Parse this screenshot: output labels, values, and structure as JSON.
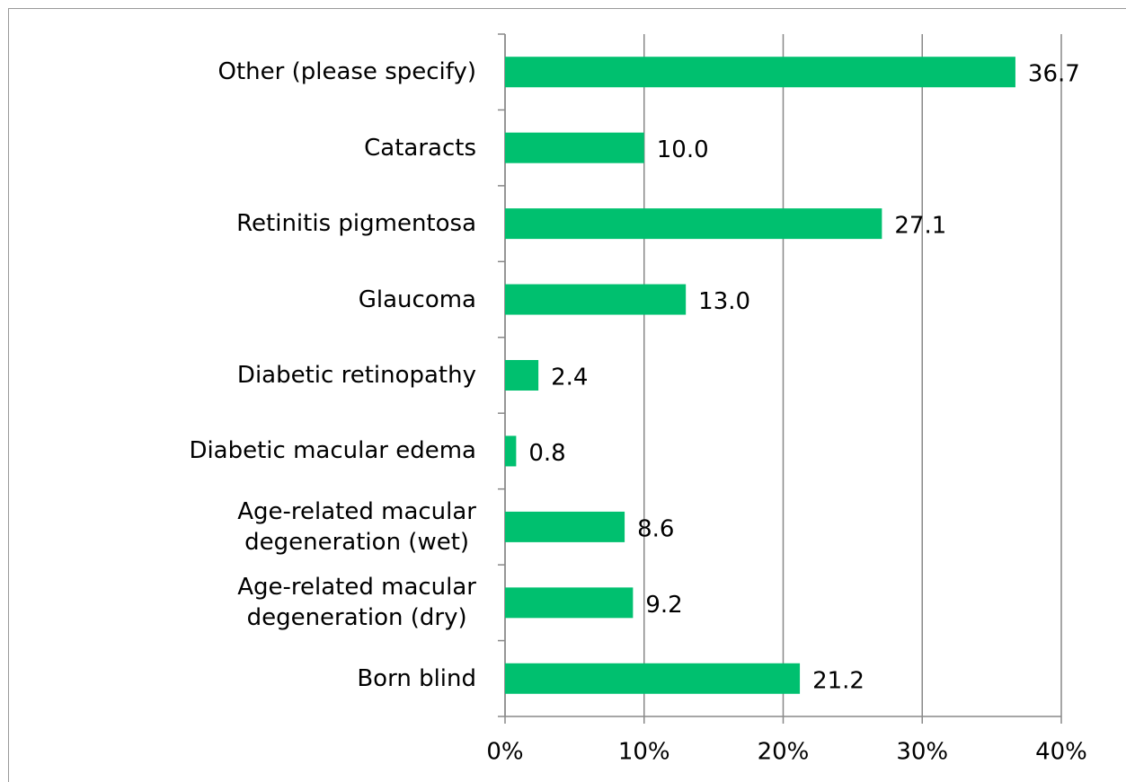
{
  "chart_data": {
    "type": "bar",
    "orientation": "horizontal",
    "categories": [
      "Other (please specify)",
      "Cataracts",
      "Retinitis pigmentosa",
      "Glaucoma",
      "Diabetic retinopathy",
      "Diabetic macular edema",
      "Age-related macular\ndegeneration (wet)",
      "Age-related macular\ndegeneration (dry)",
      "Born blind"
    ],
    "values": [
      36.7,
      10.0,
      27.1,
      13.0,
      2.4,
      0.8,
      8.6,
      9.2,
      21.2
    ],
    "value_labels": [
      "36.7",
      "10.0",
      "27.1",
      "13.0",
      "2.4",
      "0.8",
      "8.6",
      "9.2",
      "21.2"
    ],
    "color": "#00c06f",
    "xlim": [
      0,
      40
    ],
    "xticks": [
      {
        "value": 0,
        "label": "0%"
      },
      {
        "value": 10,
        "label": "10%"
      },
      {
        "value": 20,
        "label": "20%"
      },
      {
        "value": 30,
        "label": "30%"
      },
      {
        "value": 40,
        "label": "40%"
      }
    ],
    "grid": true
  }
}
